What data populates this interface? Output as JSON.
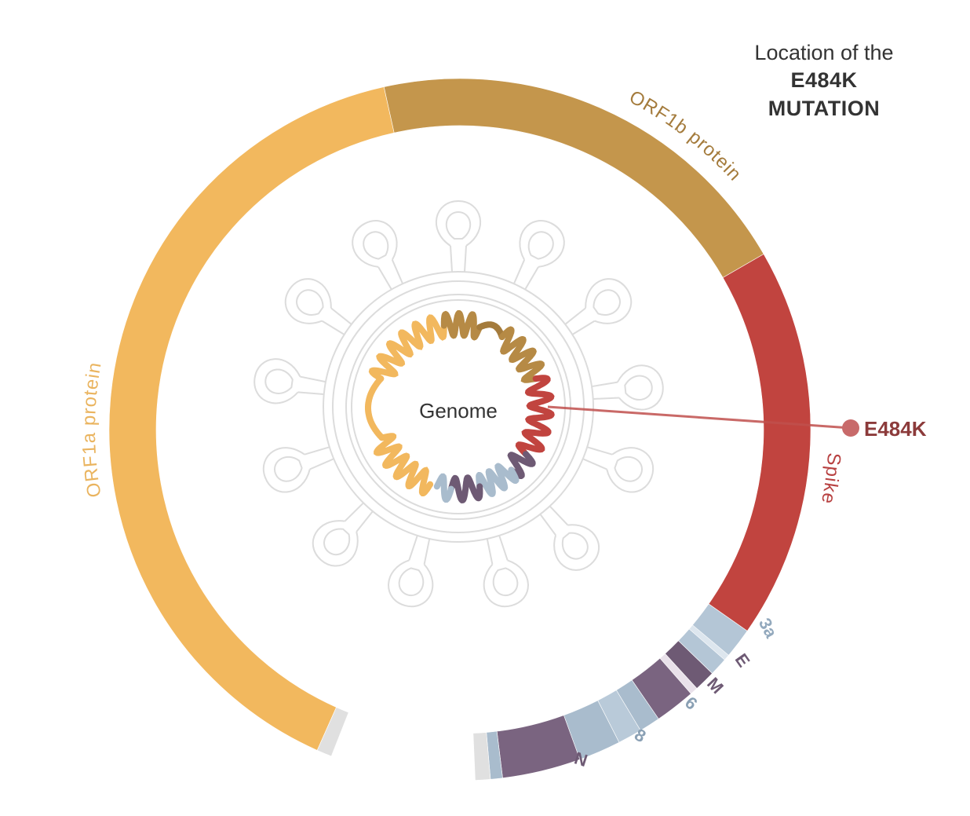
{
  "title": {
    "line1": "Location of the",
    "line2": "E484K",
    "line3": "MUTATION"
  },
  "center_label": "Genome",
  "mutation_label": "E484K",
  "segments": [
    {
      "id": "orf1a",
      "label": "ORF1a protein",
      "color": "#f2b85e",
      "label_color": "#eab45f"
    },
    {
      "id": "orf1b",
      "label": "ORF1b protein",
      "color": "#c4964c",
      "label_color": "#a47b3c"
    },
    {
      "id": "spike",
      "label": "Spike",
      "color": "#c1443f",
      "label_color": "#b84242"
    },
    {
      "id": "3a",
      "label": "3a",
      "color": "#b4c6d6",
      "label_color": "#93a9bd"
    },
    {
      "id": "e",
      "label": "E",
      "color": "#6e5a74",
      "label_color": "#6e5a74"
    },
    {
      "id": "m",
      "label": "M",
      "color": "#7a6480",
      "label_color": "#6e5a74"
    },
    {
      "id": "6",
      "label": "6",
      "color": "#a9bccd",
      "label_color": "#8aa0b4"
    },
    {
      "id": "8",
      "label": "8",
      "color": "#a9bccd",
      "label_color": "#8aa0b4"
    },
    {
      "id": "n",
      "label": "N",
      "color": "#7a6480",
      "label_color": "#6e5a74"
    }
  ],
  "colors": {
    "outline": "#dcdcdc",
    "end_cap": "#e0e0e0",
    "mutation_line": "#c0504d",
    "mutation_dot": "#c86a6a",
    "mutation_text": "#8c3b3b"
  }
}
